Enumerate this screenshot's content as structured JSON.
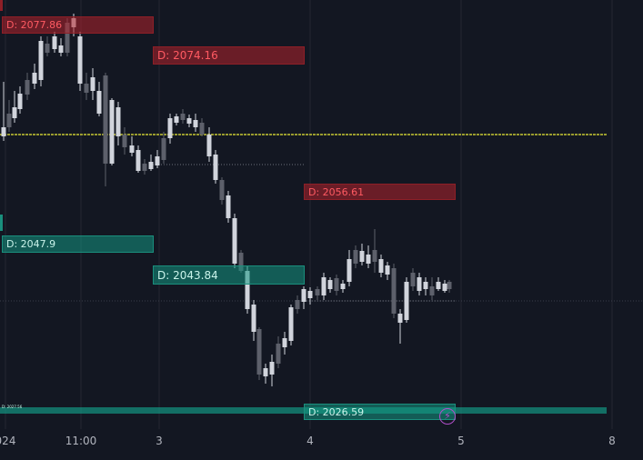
{
  "colors": {
    "background": "#131722",
    "grid": "#242733",
    "resistance": "#b2222b",
    "support": "#149682",
    "candle_up": "#d1d4dc",
    "candle_down": "#5d606b",
    "ema_line": "#c8c832"
  },
  "time_axis": {
    "labels": [
      "024",
      "11:00",
      "3",
      "4",
      "5",
      "8"
    ]
  },
  "levels": {
    "resistance": [
      "D: 2077.86",
      "D: 2074.16",
      "D: 2056.61"
    ],
    "support": [
      "D: 2047.9",
      "D: 2043.84",
      "D: 2026.59"
    ],
    "thin_label": "D: 2027.56"
  },
  "icons": {
    "alert": "lightning-icon"
  }
}
